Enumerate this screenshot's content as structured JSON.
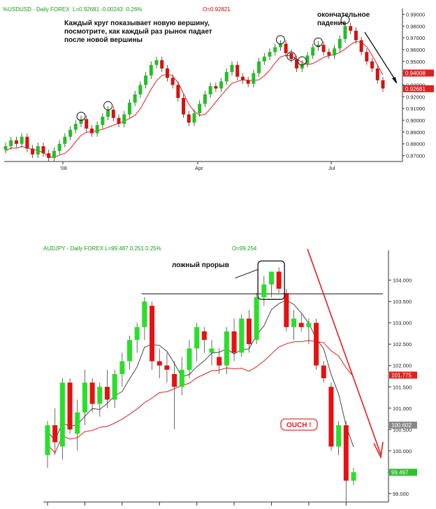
{
  "chart_data": [
    {
      "type": "candlestick",
      "symbol_header": "%USDUSD - Daily  FOREX",
      "header_values": "L=0.92681  -0.00243  -0.26%",
      "header_open": "O=0.92821",
      "annotation_main": [
        "Каждый круг показывает новую вершину,",
        "посмотрите, как каждый раз рынок падает",
        "после новой вершины"
      ],
      "annotation_final": [
        "окончательное",
        "падение"
      ],
      "y_ticks": [
        "0.99000",
        "0.98000",
        "0.97000",
        "0.96000",
        "0.95000",
        "0.94000",
        "0.93000",
        "0.92000",
        "0.91000",
        "0.90000",
        "0.89000",
        "0.88000",
        "0.87000"
      ],
      "ylim": [
        0.865,
        0.995
      ],
      "x_ticks": [
        "'08",
        "Apr",
        "Jul"
      ],
      "price_tags": [
        {
          "label": "0.94008",
          "value": 0.9401,
          "color": "#e02020"
        },
        {
          "label": "0.92681",
          "value": 0.9268,
          "color": "#e02020"
        }
      ],
      "peaks_circled": [
        0.901,
        0.91,
        0.952,
        0.948,
        0.964,
        0.966,
        0.983
      ],
      "series_close": [
        0.878,
        0.883,
        0.88,
        0.886,
        0.876,
        0.871,
        0.878,
        0.872,
        0.868,
        0.874,
        0.88,
        0.886,
        0.892,
        0.897,
        0.901,
        0.893,
        0.889,
        0.896,
        0.903,
        0.909,
        0.902,
        0.897,
        0.905,
        0.915,
        0.922,
        0.93,
        0.938,
        0.947,
        0.951,
        0.944,
        0.936,
        0.93,
        0.919,
        0.905,
        0.898,
        0.906,
        0.914,
        0.922,
        0.929,
        0.927,
        0.933,
        0.941,
        0.947,
        0.937,
        0.934,
        0.931,
        0.94,
        0.95,
        0.954,
        0.958,
        0.962,
        0.965,
        0.957,
        0.952,
        0.944,
        0.948,
        0.955,
        0.962,
        0.964,
        0.958,
        0.955,
        0.961,
        0.969,
        0.98,
        0.976,
        0.968,
        0.958,
        0.95,
        0.944,
        0.934,
        0.927
      ]
    },
    {
      "type": "candlestick",
      "symbol_header": "AUDJPY - Daily  FOREX",
      "header_values": "L=99.487  0.251  0.25%",
      "header_open": "O=99.254",
      "annotation_false_break": "ложный прорыв",
      "annotation_ouch": "OUCH !",
      "y_ticks": [
        "104.000",
        "103.500",
        "103.000",
        "102.500",
        "102.000",
        "101.500",
        "101.000",
        "100.500",
        "100.000",
        "99.500",
        "99.000"
      ],
      "ylim": [
        98.8,
        104.7
      ],
      "resistance_level": 103.68,
      "price_tags": [
        {
          "label": "101.775",
          "value": 101.775,
          "color": "#e02020"
        },
        {
          "label": "100.602",
          "value": 100.602,
          "color": "#888888"
        },
        {
          "label": "99.497",
          "value": 99.497,
          "color": "#2fbf2f"
        }
      ],
      "candles": [
        {
          "o": 99.9,
          "h": 100.7,
          "l": 99.6,
          "c": 100.6
        },
        {
          "o": 100.6,
          "h": 101.0,
          "l": 99.9,
          "c": 100.2
        },
        {
          "o": 100.1,
          "h": 101.7,
          "l": 99.8,
          "c": 101.6
        },
        {
          "o": 101.6,
          "h": 101.7,
          "l": 100.4,
          "c": 100.5
        },
        {
          "o": 100.4,
          "h": 101.2,
          "l": 100.0,
          "c": 100.9
        },
        {
          "o": 100.9,
          "h": 101.9,
          "l": 100.6,
          "c": 101.6
        },
        {
          "o": 101.6,
          "h": 101.7,
          "l": 100.9,
          "c": 101.1
        },
        {
          "o": 101.1,
          "h": 101.6,
          "l": 100.8,
          "c": 101.5
        },
        {
          "o": 101.5,
          "h": 101.9,
          "l": 101.0,
          "c": 101.2
        },
        {
          "o": 101.2,
          "h": 101.9,
          "l": 101.0,
          "c": 101.8
        },
        {
          "o": 101.8,
          "h": 102.3,
          "l": 101.5,
          "c": 102.1
        },
        {
          "o": 102.1,
          "h": 102.7,
          "l": 101.9,
          "c": 102.6
        },
        {
          "o": 102.6,
          "h": 103.0,
          "l": 102.3,
          "c": 102.9
        },
        {
          "o": 102.9,
          "h": 103.6,
          "l": 102.6,
          "c": 103.5
        },
        {
          "o": 103.4,
          "h": 103.5,
          "l": 101.9,
          "c": 102.1
        },
        {
          "o": 102.1,
          "h": 102.4,
          "l": 101.7,
          "c": 102.0
        },
        {
          "o": 102.0,
          "h": 102.3,
          "l": 101.6,
          "c": 101.9
        },
        {
          "o": 101.8,
          "h": 102.1,
          "l": 100.5,
          "c": 101.5
        },
        {
          "o": 101.5,
          "h": 102.2,
          "l": 101.3,
          "c": 101.9
        },
        {
          "o": 101.9,
          "h": 102.6,
          "l": 101.7,
          "c": 102.4
        },
        {
          "o": 102.4,
          "h": 103.0,
          "l": 102.1,
          "c": 102.9
        },
        {
          "o": 102.8,
          "h": 102.9,
          "l": 102.3,
          "c": 102.6
        },
        {
          "o": 102.3,
          "h": 102.6,
          "l": 102.0,
          "c": 102.4
        },
        {
          "o": 102.2,
          "h": 102.4,
          "l": 101.8,
          "c": 102.0
        },
        {
          "o": 102.0,
          "h": 102.9,
          "l": 101.8,
          "c": 102.8
        },
        {
          "o": 102.8,
          "h": 103.1,
          "l": 102.1,
          "c": 102.3
        },
        {
          "o": 102.3,
          "h": 103.2,
          "l": 102.2,
          "c": 103.1
        },
        {
          "o": 103.1,
          "h": 103.3,
          "l": 102.3,
          "c": 102.5
        },
        {
          "o": 102.6,
          "h": 103.7,
          "l": 102.5,
          "c": 103.6
        },
        {
          "o": 103.6,
          "h": 104.1,
          "l": 103.4,
          "c": 103.9
        },
        {
          "o": 103.9,
          "h": 104.2,
          "l": 103.6,
          "c": 104.2
        },
        {
          "o": 104.2,
          "h": 104.3,
          "l": 103.7,
          "c": 103.8
        },
        {
          "o": 103.7,
          "h": 103.8,
          "l": 102.8,
          "c": 102.9
        },
        {
          "o": 102.9,
          "h": 103.3,
          "l": 102.6,
          "c": 103.1
        },
        {
          "o": 103.0,
          "h": 103.2,
          "l": 102.8,
          "c": 102.9
        },
        {
          "o": 102.9,
          "h": 103.1,
          "l": 102.5,
          "c": 103.0
        },
        {
          "o": 103.0,
          "h": 103.1,
          "l": 101.9,
          "c": 102.0
        },
        {
          "o": 102.0,
          "h": 102.1,
          "l": 101.6,
          "c": 101.7
        },
        {
          "o": 101.5,
          "h": 101.6,
          "l": 100.0,
          "c": 100.1
        },
        {
          "o": 100.1,
          "h": 100.7,
          "l": 99.9,
          "c": 100.6
        },
        {
          "o": 100.6,
          "h": 100.7,
          "l": 98.8,
          "c": 99.3
        },
        {
          "o": 99.3,
          "h": 99.6,
          "l": 99.2,
          "c": 99.5
        }
      ]
    }
  ]
}
